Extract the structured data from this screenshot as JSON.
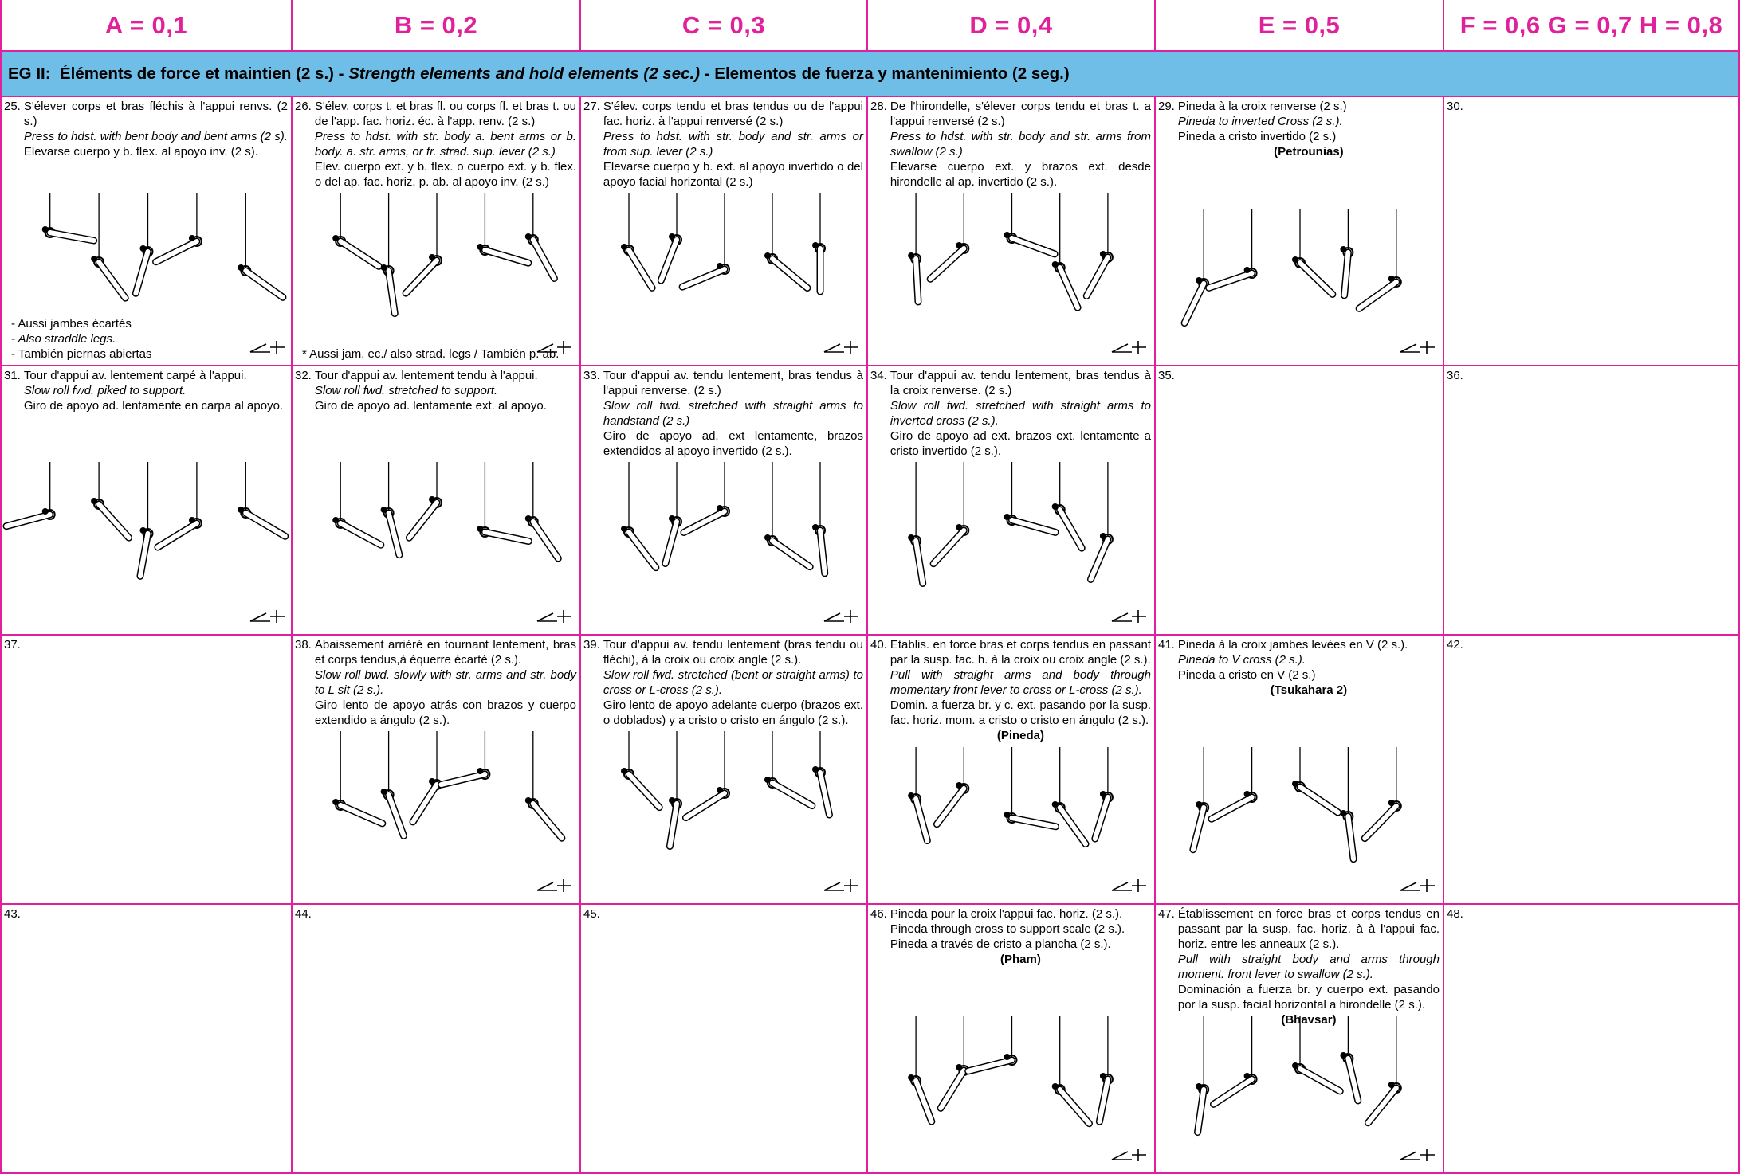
{
  "header": {
    "columns": [
      "A = 0,1",
      "B = 0,2",
      "C = 0,3",
      "D = 0,4",
      "E = 0,5",
      "F = 0,6 G = 0,7 H = 0,8"
    ]
  },
  "banner": {
    "parts": [
      "EG II:  Éléments de force et maintien (2 s.) - ",
      "Strength elements and hold elements (2 sec.)",
      " - Elementos de fuerza y mantenimiento (2 seg.)"
    ]
  },
  "cells": [
    {
      "number": "25.",
      "lines": [
        "S'élever corps et bras fléchis à l'appui renvs. (2 s.)",
        "Press to hdst. with bent body and bent arms (2 s).",
        "Elevarse cuerpo y b. flex. al apoyo inv. (2 s)."
      ],
      "italic": 1,
      "notes": [
        "- Aussi jambes écartés",
        "- Also straddle legs.",
        "- También piernas abiertas"
      ],
      "notes_italic": 1
    },
    {
      "number": "26.",
      "lines": [
        "S'élev. corps t. et bras fl. ou corps fl. et bras t. ou de l'app. fac. horiz. éc. à l'app. renv. (2 s.)",
        "Press to hdst. with str. body a. bent arms or b. body. a. str. arms, or fr. strad. sup. lever (2 s.)",
        "Elev. cuerpo ext. y b. flex. o cuerpo ext. y b. flex. o del ap. fac. horiz. p. ab. al apoyo inv. (2 s.)"
      ],
      "italic": 1,
      "notes": [
        "* Aussi jam. ec./ also strad. legs / También p. ab."
      ]
    },
    {
      "number": "27.",
      "lines": [
        "S'élev. corps tendu et bras tendus ou de l'appui fac. horiz. à l'appui renversé (2 s.)",
        "Press to hdst. with str. body and str. arms or from sup. lever (2 s.)",
        "Elevarse cuerpo y b. ext. al apoyo invertido o del apoyo facial horizontal (2 s.)"
      ],
      "italic": 1
    },
    {
      "number": "28.",
      "lines": [
        "De l'hirondelle, s'élever corps tendu et bras t. a l'appui renversé (2 s.)",
        "Press to hdst. with str. body and str. arms from swallow (2 s.)",
        "Elevarse cuerpo ext. y brazos ext. desde hirondelle al ap. invertido (2 s.)."
      ],
      "italic": 1
    },
    {
      "number": "29.",
      "lines": [
        "Pineda à la croix renverse (2 s.)",
        "Pineda to inverted Cross (2 s.).",
        "Pineda a cristo invertido (2 s.)"
      ],
      "italic": 1,
      "name": "(Petrounias)"
    },
    {
      "number": "30."
    },
    {
      "number": "31.",
      "lines": [
        "Tour d'appui av. lentement carpé à l'appui.",
        "Slow roll fwd. piked to support.",
        "Giro de apoyo ad. lentamente en carpa al apoyo."
      ],
      "italic": 1
    },
    {
      "number": "32.",
      "lines": [
        "Tour d'appui av. lentement tendu à l'appui.",
        "Slow roll fwd. stretched to support.",
        "Giro de apoyo ad. lentamente ext. al apoyo."
      ],
      "italic": 1
    },
    {
      "number": "33.",
      "lines": [
        "Tour d'appui av. tendu lentement, bras tendus à l'appui renverse. (2 s.)",
        "Slow roll fwd. stretched with straight arms to handstand (2 s.)",
        "Giro de apoyo ad. ext lentamente, brazos extendidos al apoyo invertido (2 s.)."
      ],
      "italic": 1
    },
    {
      "number": "34.",
      "lines": [
        "Tour d'appui av. tendu lentement, bras tendus à la croix renverse. (2 s.)",
        "Slow roll fwd. stretched with straight arms to inverted cross (2 s.).",
        "Giro de apoyo ad ext. brazos ext. lentamente a cristo invertido (2 s.)."
      ],
      "italic": 1
    },
    {
      "number": "35."
    },
    {
      "number": "36."
    },
    {
      "number": "37."
    },
    {
      "number": "38.",
      "lines": [
        "Abaissement arriéré en tournant lentement, bras et corps tendus,à équerre écarté (2 s.).",
        "Slow roll bwd. slowly with str. arms and str. body to L sit (2 s.).",
        "Giro lento de apoyo atrás con brazos y cuerpo extendido a ángulo (2 s.)."
      ],
      "italic": 1
    },
    {
      "number": "39.",
      "lines": [
        "Tour d'appui av. tendu lentement (bras tendu ou fléchi), à la croix ou croix angle (2 s.).",
        "Slow roll fwd. stretched (bent or straight arms) to cross or L-cross (2 s.).",
        "Giro lento de apoyo adelante cuerpo (brazos ext. o doblados) y a cristo o cristo en ángulo (2 s.)."
      ],
      "italic": 1
    },
    {
      "number": "40.",
      "lines": [
        "Etablis. en force bras et corps tendus en passant par la susp. fac. h. à la croix ou croix angle (2 s.).",
        "Pull with straight arms and body through momentary front lever to cross or L-cross (2 s.).",
        "Domin. a fuerza br. y c. ext. pasando por la susp. fac. horiz. mom. a cristo o cristo en ángulo (2 s.)."
      ],
      "italic": 1,
      "name": "(Pineda)"
    },
    {
      "number": "41.",
      "lines": [
        "Pineda à la croix jambes levées en V (2 s.).",
        "Pineda to V cross (2 s.).",
        "Pineda a cristo en V (2 s.)"
      ],
      "italic": 1,
      "name": "(Tsukahara 2)"
    },
    {
      "number": "42."
    },
    {
      "number": "43."
    },
    {
      "number": "44."
    },
    {
      "number": "45."
    },
    {
      "number": "46.",
      "lines": [
        "Pineda pour la croix l'appui fac. horiz. (2 s.).",
        "Pineda through cross to support scale (2 s.).",
        "Pineda a través de cristo a plancha (2 s.)."
      ],
      "name": "(Pham)"
    },
    {
      "number": "47.",
      "lines": [
        "Établissement en force bras et corps tendus en passant par la susp. fac. horiz. à à l'appui fac. horiz. entre les anneaux (2 s.).",
        "Pull with straight body and arms through moment. front lever to swallow (2 s.).",
        "Dominación a fuerza br. y cuerpo ext. pasando por la susp. facial horizontal a hirondelle (2 s.)."
      ],
      "italic": 1,
      "name": "(Bhavsar)"
    },
    {
      "number": "48."
    }
  ]
}
